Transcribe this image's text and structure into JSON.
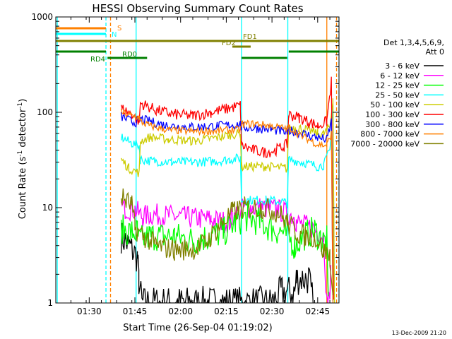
{
  "chart_data": {
    "type": "line",
    "title": "HESSI Observing Summary Count Rates",
    "xlabel": "Start Time (26-Sep-04 01:19:02)",
    "ylabel_main": "Count Rate (s",
    "ylabel_sup1": "-1",
    "ylabel_mid": " detector",
    "ylabel_sup2": "-1",
    "ylabel_end": ")",
    "yscale": "log",
    "ylim": [
      1,
      1000
    ],
    "xlim": [
      79.03,
      172.0
    ],
    "x_ticks": [
      {
        "x": 90,
        "label": "01:30"
      },
      {
        "x": 105,
        "label": "01:45"
      },
      {
        "x": 120,
        "label": "02:00"
      },
      {
        "x": 135,
        "label": "02:15"
      },
      {
        "x": 150,
        "label": "02:30"
      },
      {
        "x": 165,
        "label": "02:45"
      }
    ],
    "y_ticks": [
      {
        "y": 1,
        "label": "1"
      },
      {
        "y": 10,
        "label": "10"
      },
      {
        "y": 100,
        "label": "100"
      },
      {
        "y": 1000,
        "label": "1000"
      }
    ],
    "legend": {
      "placement": "right",
      "header_line1": "Det 1,3,4,5,6,9,",
      "header_line2": "Att 0",
      "entries": [
        {
          "label": "3 - 6 keV",
          "color": "#000000"
        },
        {
          "label": "6 - 12 keV",
          "color": "#ff00ff"
        },
        {
          "label": "12 - 25 keV",
          "color": "#00ff00"
        },
        {
          "label": "25 - 50 keV",
          "color": "#00ffff"
        },
        {
          "label": "50 - 100 keV",
          "color": "#cccc00"
        },
        {
          "label": "100 - 300 keV",
          "color": "#ff0000"
        },
        {
          "label": "300 - 800 keV",
          "color": "#0000ff"
        },
        {
          "label": "800 - 7000 keV",
          "color": "#ff8000"
        },
        {
          "label": "7000 - 20000 keV",
          "color": "#808000"
        }
      ]
    },
    "series": [
      {
        "color": "#000000",
        "points": [
          [
            100.5,
            5
          ],
          [
            103,
            4
          ],
          [
            105.8,
            3
          ],
          [
            106.3,
            1.7
          ],
          [
            107.3,
            1
          ],
          [
            150,
            1
          ],
          [
            153,
            1.3
          ],
          [
            157.5,
            1.3
          ],
          [
            158,
            1.8
          ],
          [
            162,
            1.8
          ],
          [
            163.5,
            1
          ]
        ]
      },
      {
        "color": "#ff00ff",
        "points": [
          [
            100.5,
            10
          ],
          [
            105,
            9.5
          ],
          [
            107.5,
            8
          ],
          [
            110,
            8.5
          ],
          [
            120,
            8
          ],
          [
            130,
            7.5
          ],
          [
            136,
            7
          ],
          [
            137,
            8
          ],
          [
            141,
            10
          ],
          [
            147,
            10
          ],
          [
            152,
            9.5
          ],
          [
            157.5,
            8
          ],
          [
            158,
            7
          ],
          [
            164,
            6
          ],
          [
            167,
            5
          ],
          [
            168,
            1
          ],
          [
            169,
            1.2
          ],
          [
            169.3,
            2
          ]
        ]
      },
      {
        "color": "#00ff00",
        "points": [
          [
            100.5,
            6
          ],
          [
            104,
            5.5
          ],
          [
            105.8,
            5.5
          ],
          [
            106.3,
            4.5
          ],
          [
            110,
            5
          ],
          [
            118,
            5
          ],
          [
            124,
            4.5
          ],
          [
            134,
            5.5
          ],
          [
            138,
            7
          ],
          [
            142,
            8
          ],
          [
            146,
            7
          ],
          [
            150,
            6
          ],
          [
            154,
            5.5
          ],
          [
            157.5,
            4
          ],
          [
            161,
            5.2
          ],
          [
            164,
            5.8
          ],
          [
            166.5,
            4.5
          ],
          [
            168,
            4.5
          ],
          [
            168.5,
            1
          ]
        ]
      },
      {
        "color": "#00ffff",
        "points": [
          [
            100.5,
            55
          ],
          [
            104,
            47
          ],
          [
            106.4,
            45
          ],
          [
            106.8,
            32
          ],
          [
            110,
            31
          ],
          [
            117,
            30
          ],
          [
            125,
            30
          ],
          [
            133,
            31
          ],
          [
            136,
            32
          ],
          [
            139.6,
            33
          ],
          [
            140,
            12
          ],
          [
            148,
            12
          ],
          [
            154,
            11.5
          ],
          [
            155,
            11
          ],
          [
            155.5,
            32
          ],
          [
            162,
            29
          ],
          [
            165,
            27
          ],
          [
            167,
            28
          ],
          [
            169,
            40
          ],
          [
            170,
            120
          ],
          [
            170.5,
            1
          ]
        ]
      },
      {
        "color": "#cccc00",
        "points": [
          [
            100.5,
            32
          ],
          [
            103,
            26
          ],
          [
            106.4,
            23
          ],
          [
            106.8,
            50
          ],
          [
            110,
            55
          ],
          [
            116,
            52
          ],
          [
            125,
            50
          ],
          [
            133,
            55
          ],
          [
            136,
            58
          ],
          [
            139.6,
            60
          ],
          [
            140,
            27
          ],
          [
            148,
            27
          ],
          [
            154,
            26
          ],
          [
            155,
            25.5
          ],
          [
            155.5,
            70
          ],
          [
            159,
            68
          ],
          [
            162,
            65
          ],
          [
            165,
            60
          ],
          [
            167,
            59
          ],
          [
            169,
            70
          ],
          [
            170,
            140
          ],
          [
            170.5,
            1
          ]
        ]
      },
      {
        "color": "#ff0000",
        "points": [
          [
            100.5,
            110
          ],
          [
            104,
            95
          ],
          [
            106.4,
            80
          ],
          [
            106.8,
            125
          ],
          [
            112,
            105
          ],
          [
            118,
            95
          ],
          [
            124,
            92
          ],
          [
            130,
            100
          ],
          [
            136,
            110
          ],
          [
            139.6,
            118
          ],
          [
            140,
            45
          ],
          [
            144,
            40
          ],
          [
            148,
            38
          ],
          [
            151,
            40
          ],
          [
            154,
            44
          ],
          [
            155,
            46
          ],
          [
            155.5,
            95
          ],
          [
            159,
            88
          ],
          [
            162,
            80
          ],
          [
            165,
            72
          ],
          [
            168,
            80
          ],
          [
            169.5,
            210
          ],
          [
            170.2,
            1
          ]
        ]
      },
      {
        "color": "#0000ff",
        "points": [
          [
            100.5,
            90
          ],
          [
            104,
            80
          ],
          [
            106.4,
            78
          ],
          [
            106.8,
            85
          ],
          [
            110,
            80
          ],
          [
            116,
            72
          ],
          [
            124,
            70
          ],
          [
            132,
            72
          ],
          [
            136,
            73
          ],
          [
            139.6,
            75
          ],
          [
            140,
            70
          ],
          [
            145,
            68
          ],
          [
            150,
            66
          ],
          [
            155,
            61
          ],
          [
            155.5,
            65
          ],
          [
            160,
            60
          ],
          [
            165,
            54
          ],
          [
            168,
            52
          ],
          [
            169.5,
            80
          ],
          [
            170,
            1
          ]
        ]
      },
      {
        "color": "#ff8000",
        "points": [
          [
            100.5,
            100
          ],
          [
            104,
            92
          ],
          [
            106.4,
            88
          ],
          [
            106.8,
            80
          ],
          [
            110,
            72
          ],
          [
            116,
            65
          ],
          [
            124,
            63
          ],
          [
            132,
            64
          ],
          [
            136,
            65
          ],
          [
            139.6,
            66
          ],
          [
            140,
            75
          ],
          [
            145,
            76
          ],
          [
            150,
            72
          ],
          [
            155,
            67
          ],
          [
            155.5,
            70
          ],
          [
            159,
            58
          ],
          [
            162,
            52
          ],
          [
            165,
            46
          ],
          [
            168,
            45
          ],
          [
            169.5,
            60
          ],
          [
            170,
            1
          ]
        ]
      },
      {
        "color": "#808000",
        "points": [
          [
            100.5,
            13
          ],
          [
            104,
            10.5
          ],
          [
            105,
            6
          ],
          [
            108,
            5
          ],
          [
            112,
            4
          ],
          [
            118,
            3.6
          ],
          [
            124,
            3.7
          ],
          [
            128,
            4.2
          ],
          [
            133,
            6.5
          ],
          [
            137,
            9
          ],
          [
            141,
            10
          ],
          [
            147,
            10
          ],
          [
            152,
            9
          ],
          [
            155,
            7
          ],
          [
            158,
            5.5
          ],
          [
            161,
            5
          ],
          [
            164,
            5
          ],
          [
            167,
            3.5
          ],
          [
            169,
            3.2
          ],
          [
            170,
            1
          ]
        ]
      }
    ],
    "status_bars": [
      {
        "label": "S",
        "color": "#ff8000",
        "segments": [
          [
            79.03,
            95.5
          ],
          [
            172,
            175
          ]
        ]
      },
      {
        "label": "N",
        "color": "#00ffff",
        "segments": [
          [
            79.03,
            95.5
          ],
          [
            172,
            175
          ]
        ]
      },
      {
        "label": "FD1",
        "color": "#808000",
        "segments": [
          [
            79.03,
            172
          ]
        ]
      },
      {
        "label": "FD2",
        "color": "#808000",
        "segments": [
          [
            137,
            143
          ]
        ]
      },
      {
        "label": "",
        "color": "#008000",
        "segments": [
          [
            79.03,
            95.5
          ],
          [
            155.5,
            172
          ]
        ]
      },
      {
        "label": "RD4",
        "color": "#008000",
        "segments": [
          [
            96,
            103
          ]
        ]
      },
      {
        "label": "RD0",
        "color": "#008000",
        "segments": [
          [
            103,
            109
          ],
          [
            140,
            155
          ]
        ]
      }
    ],
    "vertical_lines": [
      {
        "x": 79.5,
        "color": "#00ffff",
        "dashed": false
      },
      {
        "x": 95.5,
        "color": "#00ffff",
        "dashed": true
      },
      {
        "x": 97.0,
        "color": "#ff8000",
        "dashed": true
      },
      {
        "x": 105.4,
        "color": "#00ffff",
        "dashed": false
      },
      {
        "x": 140.0,
        "color": "#00ffff",
        "dashed": false
      },
      {
        "x": 155.2,
        "color": "#00ffff",
        "dashed": false
      },
      {
        "x": 168.0,
        "color": "#ff8000",
        "dashed": false
      },
      {
        "x": 171.2,
        "color": "#ff8000",
        "dashed": true
      },
      {
        "x": 172.0,
        "color": "#00ffff",
        "dashed": true
      }
    ]
  },
  "footer_timestamp": "13-Dec-2009 21:20"
}
